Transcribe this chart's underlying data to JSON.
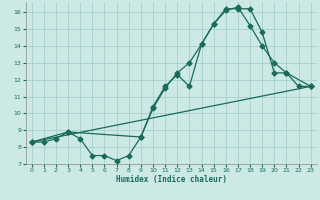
{
  "xlabel": "Humidex (Indice chaleur)",
  "bg_color": "#cce9e5",
  "grid_color": "#aad4ce",
  "line_color": "#1a6b5a",
  "xlim": [
    -0.5,
    23.5
  ],
  "ylim": [
    7.0,
    16.6
  ],
  "xticks": [
    0,
    1,
    2,
    3,
    4,
    5,
    6,
    7,
    8,
    9,
    10,
    11,
    12,
    13,
    14,
    15,
    16,
    17,
    18,
    19,
    20,
    21,
    22,
    23
  ],
  "yticks": [
    7,
    8,
    9,
    10,
    11,
    12,
    13,
    14,
    15,
    16
  ],
  "line1_x": [
    0,
    1,
    2,
    3,
    4,
    5,
    6,
    7,
    8,
    9,
    10,
    11,
    12,
    13,
    14,
    15,
    16,
    17,
    18,
    19,
    20,
    21,
    22,
    23
  ],
  "line1_y": [
    8.3,
    8.3,
    8.5,
    8.9,
    8.5,
    7.5,
    7.5,
    7.2,
    7.5,
    8.6,
    10.4,
    11.6,
    12.3,
    11.6,
    14.1,
    15.3,
    16.2,
    16.2,
    16.2,
    14.8,
    12.4,
    12.4,
    11.6,
    11.6
  ],
  "line2_x": [
    0,
    3,
    9,
    10,
    11,
    12,
    13,
    14,
    15,
    16,
    17,
    18,
    19,
    20,
    21,
    23
  ],
  "line2_y": [
    8.3,
    8.9,
    8.6,
    10.3,
    11.5,
    12.4,
    13.0,
    14.1,
    15.3,
    16.1,
    16.3,
    15.2,
    14.0,
    13.0,
    12.4,
    11.6
  ],
  "line3_x": [
    0,
    23
  ],
  "line3_y": [
    8.3,
    11.6
  ]
}
